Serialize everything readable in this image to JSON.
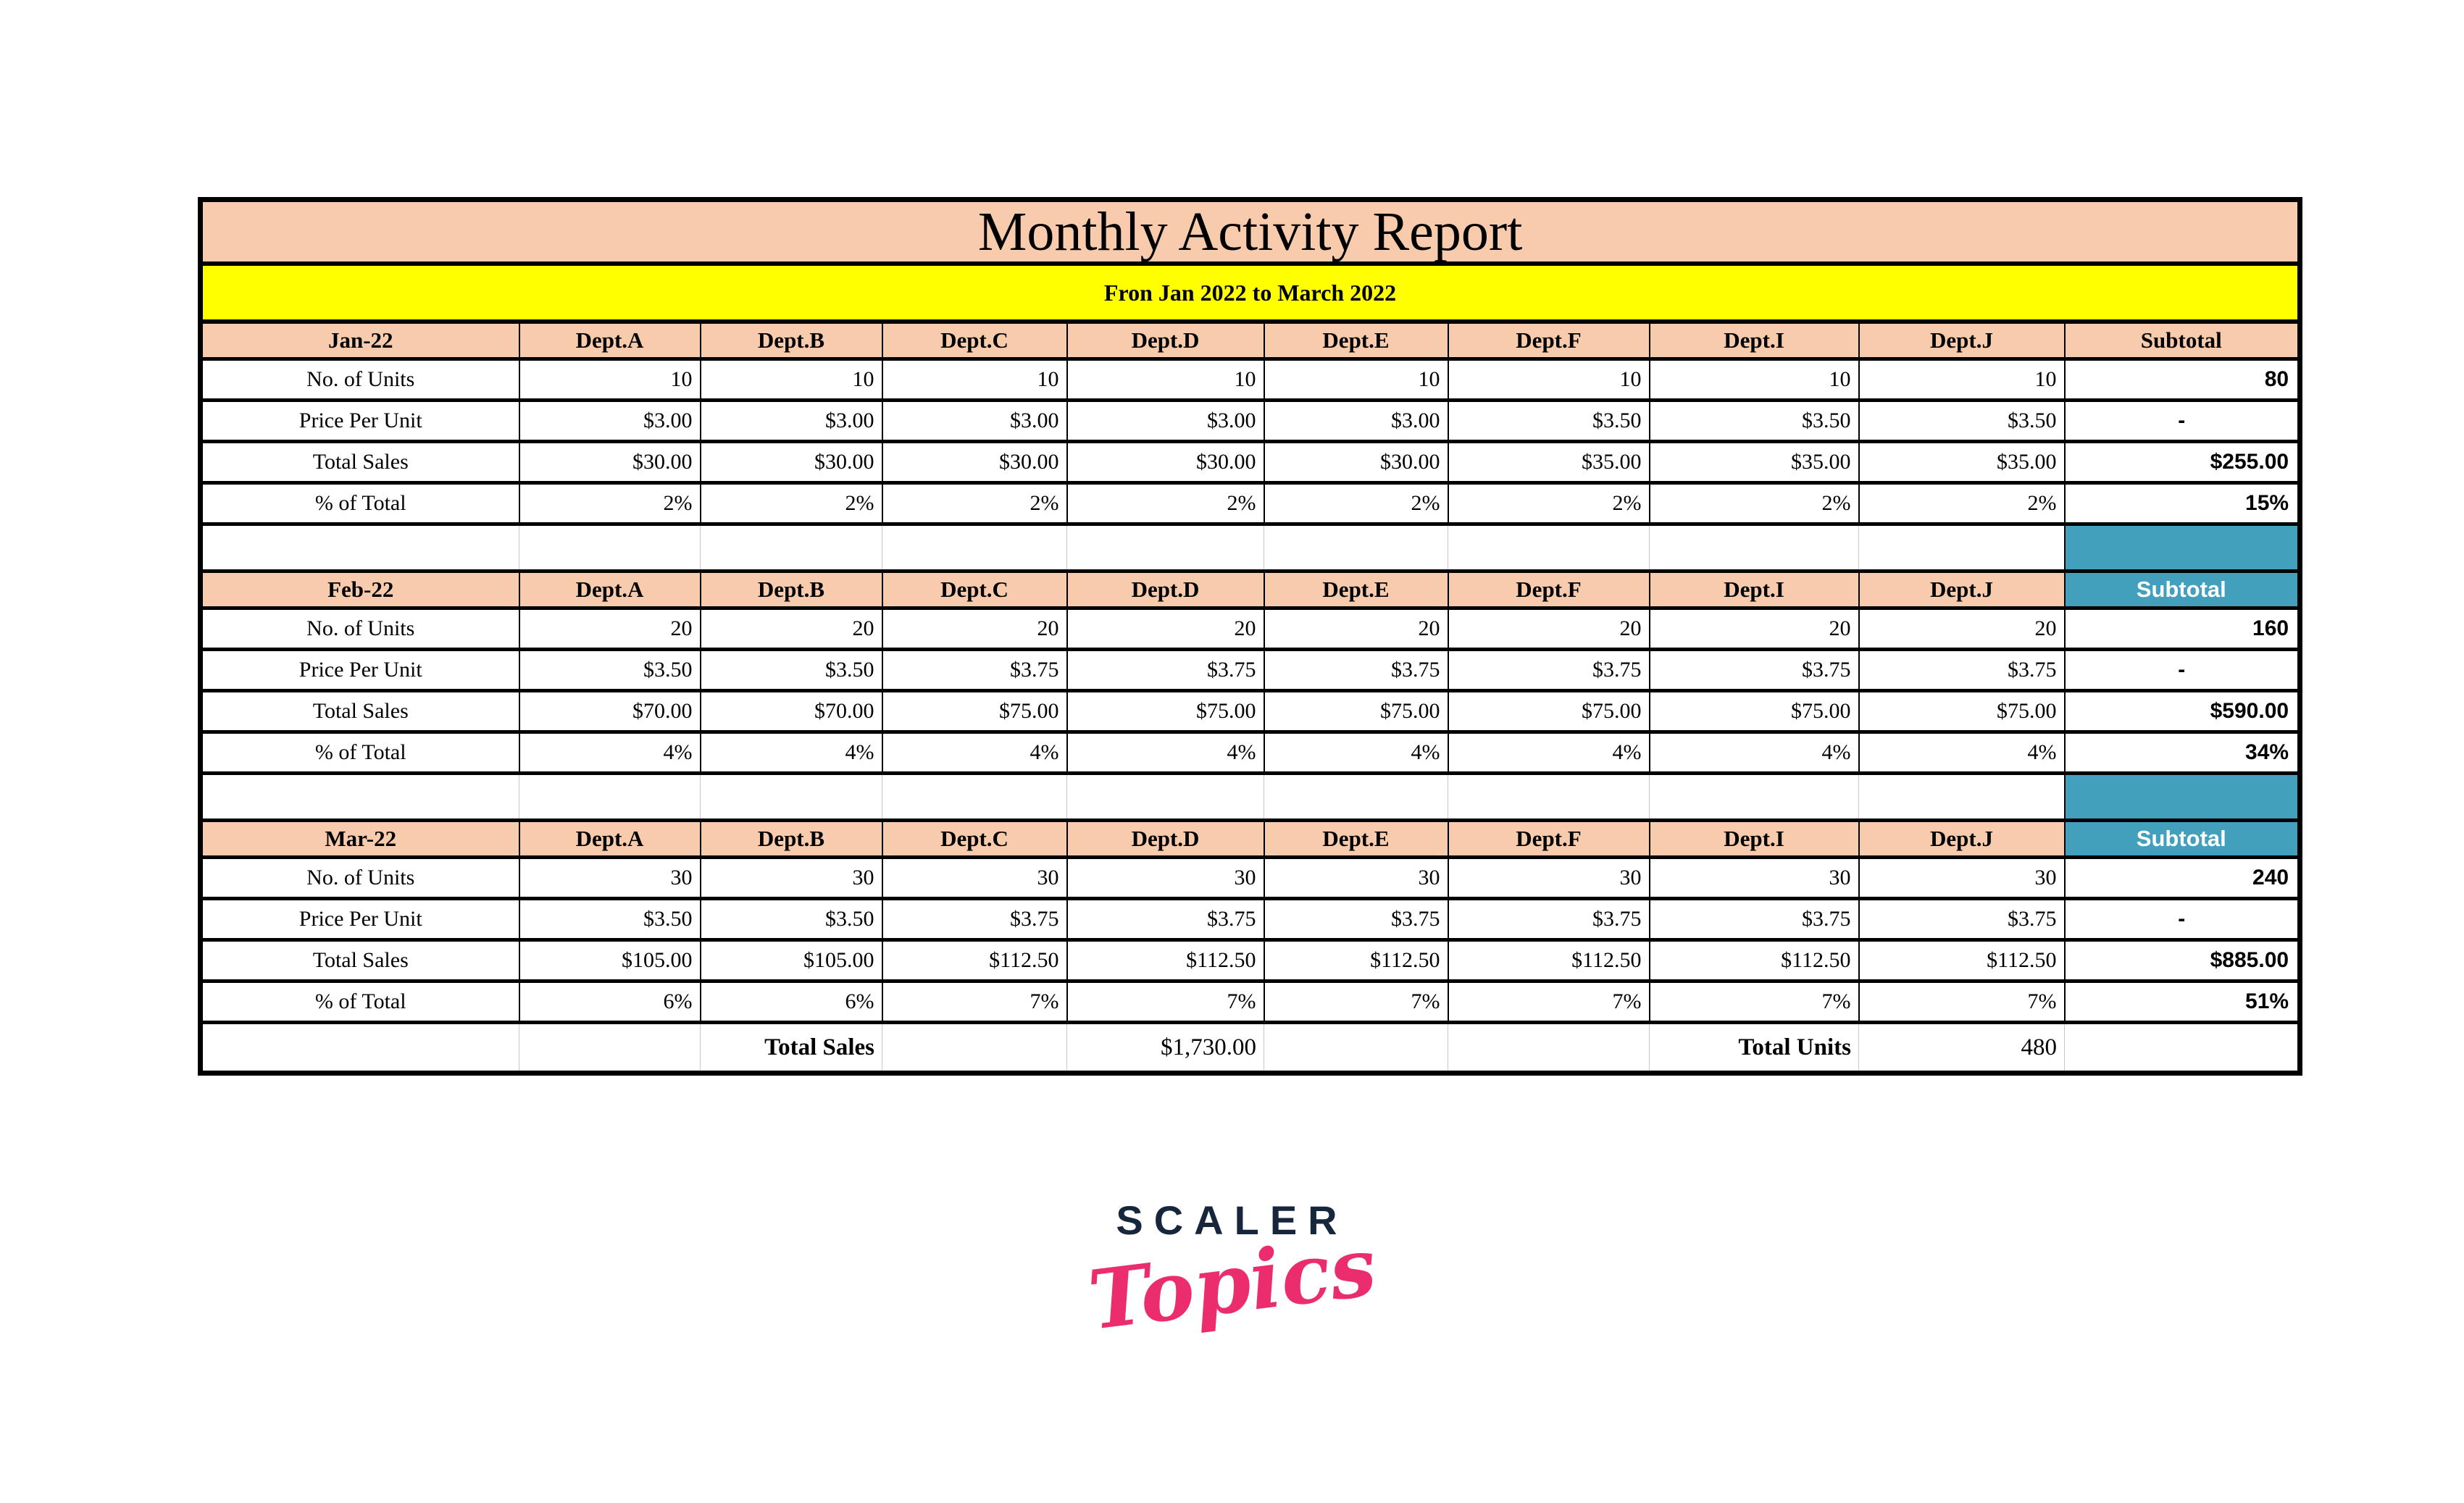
{
  "title": "Monthly Activity Report",
  "subtitle": "Fron Jan 2022 to March 2022",
  "dept_columns": [
    "Dept.A",
    "Dept.B",
    "Dept.C",
    "Dept.D",
    "Dept.E",
    "Dept.F",
    "Dept.I",
    "Dept.J"
  ],
  "subtotal_label": "Subtotal",
  "sections": [
    {
      "month": "Jan-22",
      "subtotal_header_variant": "peach",
      "rows": [
        {
          "label": "No. of Units",
          "values": [
            "10",
            "10",
            "10",
            "10",
            "10",
            "10",
            "10",
            "10"
          ],
          "subtotal": "80"
        },
        {
          "label": "Price Per Unit",
          "values": [
            "$3.00",
            "$3.00",
            "$3.00",
            "$3.00",
            "$3.00",
            "$3.50",
            "$3.50",
            "$3.50"
          ],
          "subtotal": "-"
        },
        {
          "label": "Total Sales",
          "values": [
            "$30.00",
            "$30.00",
            "$30.00",
            "$30.00",
            "$30.00",
            "$35.00",
            "$35.00",
            "$35.00"
          ],
          "subtotal": "$255.00"
        },
        {
          "label": "% of Total",
          "values": [
            "2%",
            "2%",
            "2%",
            "2%",
            "2%",
            "2%",
            "2%",
            "2%"
          ],
          "subtotal": "15%"
        }
      ]
    },
    {
      "month": "Feb-22",
      "subtotal_header_variant": "teal",
      "rows": [
        {
          "label": "No. of Units",
          "values": [
            "20",
            "20",
            "20",
            "20",
            "20",
            "20",
            "20",
            "20"
          ],
          "subtotal": "160"
        },
        {
          "label": "Price Per Unit",
          "values": [
            "$3.50",
            "$3.50",
            "$3.75",
            "$3.75",
            "$3.75",
            "$3.75",
            "$3.75",
            "$3.75"
          ],
          "subtotal": "-"
        },
        {
          "label": "Total Sales",
          "values": [
            "$70.00",
            "$70.00",
            "$75.00",
            "$75.00",
            "$75.00",
            "$75.00",
            "$75.00",
            "$75.00"
          ],
          "subtotal": "$590.00"
        },
        {
          "label": "% of Total",
          "values": [
            "4%",
            "4%",
            "4%",
            "4%",
            "4%",
            "4%",
            "4%",
            "4%"
          ],
          "subtotal": "34%"
        }
      ]
    },
    {
      "month": "Mar-22",
      "subtotal_header_variant": "teal",
      "rows": [
        {
          "label": "No. of Units",
          "values": [
            "30",
            "30",
            "30",
            "30",
            "30",
            "30",
            "30",
            "30"
          ],
          "subtotal": "240"
        },
        {
          "label": "Price Per Unit",
          "values": [
            "$3.50",
            "$3.50",
            "$3.75",
            "$3.75",
            "$3.75",
            "$3.75",
            "$3.75",
            "$3.75"
          ],
          "subtotal": "-"
        },
        {
          "label": "Total Sales",
          "values": [
            "$105.00",
            "$105.00",
            "$112.50",
            "$112.50",
            "$112.50",
            "$112.50",
            "$112.50",
            "$112.50"
          ],
          "subtotal": "$885.00"
        },
        {
          "label": "% of Total",
          "values": [
            "6%",
            "6%",
            "7%",
            "7%",
            "7%",
            "7%",
            "7%",
            "7%"
          ],
          "subtotal": "51%"
        }
      ]
    }
  ],
  "footer": {
    "total_sales_label": "Total Sales",
    "total_sales_value": "$1,730.00",
    "total_units_label": "Total Units",
    "total_units_value": "480"
  },
  "logo": {
    "brand": "SCALER",
    "sub": "Topics"
  },
  "colors": {
    "peach": "#F8CBAD",
    "yellow": "#FFFF9D",
    "band_yellow": "#FFFF00",
    "teal": "#42A0BC",
    "logo_navy": "#16263C",
    "logo_pink": "#EB2D6D"
  }
}
